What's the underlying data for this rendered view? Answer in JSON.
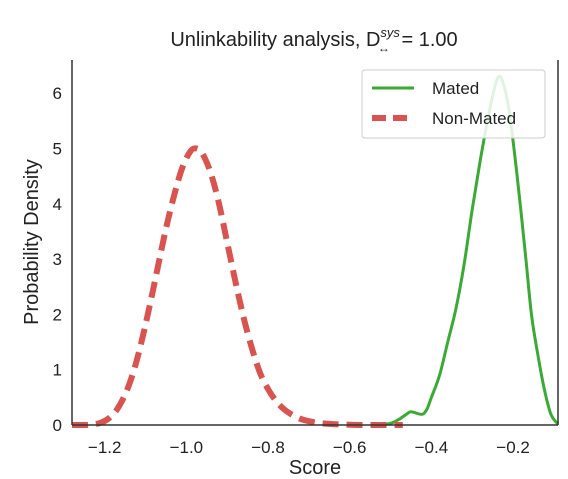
{
  "chart_data": {
    "type": "line",
    "title": {
      "text": "Unlinkability analysis, D",
      "superscript": "sys",
      "subscript": "↔",
      "suffix": " = 1.00"
    },
    "xlabel": "Score",
    "ylabel": "Probability Density",
    "xlim": [
      -1.28,
      -0.09
    ],
    "ylim": [
      0,
      6.6
    ],
    "xticks": [
      -1.2,
      -1.0,
      -0.8,
      -0.6,
      -0.4,
      -0.2
    ],
    "xtick_labels": [
      "−1.2",
      "−1.0",
      "−0.8",
      "−0.6",
      "−0.4",
      "−0.2"
    ],
    "yticks": [
      0,
      1,
      2,
      3,
      4,
      5,
      6
    ],
    "ytick_labels": [
      "0",
      "1",
      "2",
      "3",
      "4",
      "5",
      "6"
    ],
    "grid": false,
    "legend_position": "top-right",
    "series": [
      {
        "name": "Mated",
        "color": "#3aaa35",
        "line_style": "solid",
        "x": [
          -0.53,
          -0.5,
          -0.48,
          -0.46,
          -0.45,
          -0.43,
          -0.42,
          -0.41,
          -0.4,
          -0.38,
          -0.36,
          -0.34,
          -0.32,
          -0.3,
          -0.28,
          -0.26,
          -0.245,
          -0.235,
          -0.225,
          -0.21,
          -0.19,
          -0.17,
          -0.155,
          -0.14,
          -0.125,
          -0.11,
          -0.1,
          -0.09
        ],
        "y": [
          0.0,
          0.03,
          0.1,
          0.2,
          0.24,
          0.2,
          0.2,
          0.3,
          0.5,
          0.9,
          1.5,
          2.1,
          2.9,
          3.9,
          4.8,
          5.6,
          6.1,
          6.3,
          6.2,
          5.7,
          4.5,
          3.1,
          2.0,
          1.3,
          0.7,
          0.25,
          0.1,
          0.02
        ]
      },
      {
        "name": "Non-Mated",
        "color": "#d9534f",
        "line_style": "dashed",
        "x": [
          -1.28,
          -1.25,
          -1.23,
          -1.21,
          -1.19,
          -1.17,
          -1.15,
          -1.13,
          -1.11,
          -1.09,
          -1.07,
          -1.05,
          -1.03,
          -1.01,
          -0.99,
          -0.975,
          -0.96,
          -0.94,
          -0.92,
          -0.9,
          -0.88,
          -0.86,
          -0.84,
          -0.82,
          -0.8,
          -0.78,
          -0.76,
          -0.74,
          -0.72,
          -0.7,
          -0.68,
          -0.65,
          -0.62,
          -0.58,
          -0.54,
          -0.5,
          -0.47
        ],
        "y": [
          0.0,
          0.0,
          0.01,
          0.04,
          0.12,
          0.28,
          0.55,
          0.95,
          1.5,
          2.15,
          2.85,
          3.55,
          4.15,
          4.65,
          4.95,
          5.0,
          4.9,
          4.55,
          4.0,
          3.3,
          2.6,
          1.95,
          1.4,
          0.95,
          0.65,
          0.43,
          0.28,
          0.18,
          0.11,
          0.07,
          0.04,
          0.02,
          0.01,
          0.0,
          0.0,
          0.0,
          0.0
        ]
      }
    ]
  }
}
